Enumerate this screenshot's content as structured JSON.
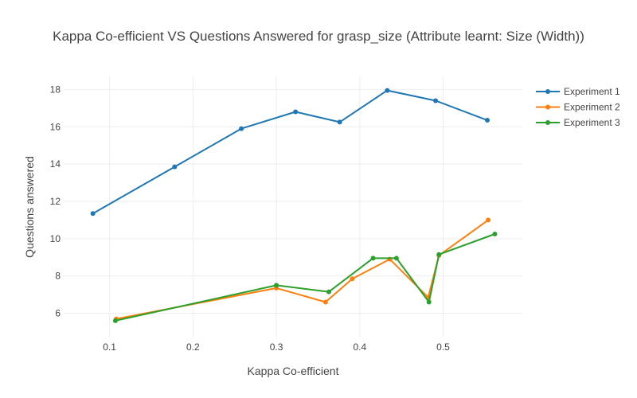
{
  "chart_data": {
    "type": "line",
    "title": "Kappa Co-efficient VS Questions Answered for grasp_size (Attribute learnt: Size (Width))",
    "xlabel": "Kappa Co-efficient",
    "ylabel": "Questions answered",
    "xlim": [
      0.045,
      0.595
    ],
    "ylim": [
      4.7,
      18.7
    ],
    "x_ticks": [
      0.1,
      0.2,
      0.3,
      0.4,
      0.5
    ],
    "x_tick_labels": [
      "0.1",
      "0.2",
      "0.3",
      "0.4",
      "0.5"
    ],
    "y_ticks": [
      6,
      8,
      10,
      12,
      14,
      16,
      18
    ],
    "y_tick_labels": [
      "6",
      "8",
      "10",
      "12",
      "14",
      "16",
      "18"
    ],
    "grid": true,
    "legend_position": "top-right",
    "series": [
      {
        "name": "Experiment 1",
        "color": "#1f77b4",
        "x": [
          0.08,
          0.178,
          0.258,
          0.323,
          0.376,
          0.433,
          0.491,
          0.553
        ],
        "y": [
          11.35,
          13.85,
          15.9,
          16.8,
          16.25,
          17.95,
          17.4,
          16.35
        ]
      },
      {
        "name": "Experiment 2",
        "color": "#ff7f0e",
        "x": [
          0.108,
          0.3,
          0.359,
          0.391,
          0.436,
          0.482,
          0.495,
          0.554
        ],
        "y": [
          5.7,
          7.35,
          6.6,
          7.85,
          8.9,
          6.85,
          9.1,
          11.0
        ]
      },
      {
        "name": "Experiment 3",
        "color": "#2ca02c",
        "x": [
          0.107,
          0.3,
          0.363,
          0.416,
          0.444,
          0.483,
          0.495,
          0.562
        ],
        "y": [
          5.6,
          7.5,
          7.15,
          8.95,
          8.95,
          6.6,
          9.15,
          10.25
        ]
      }
    ]
  }
}
